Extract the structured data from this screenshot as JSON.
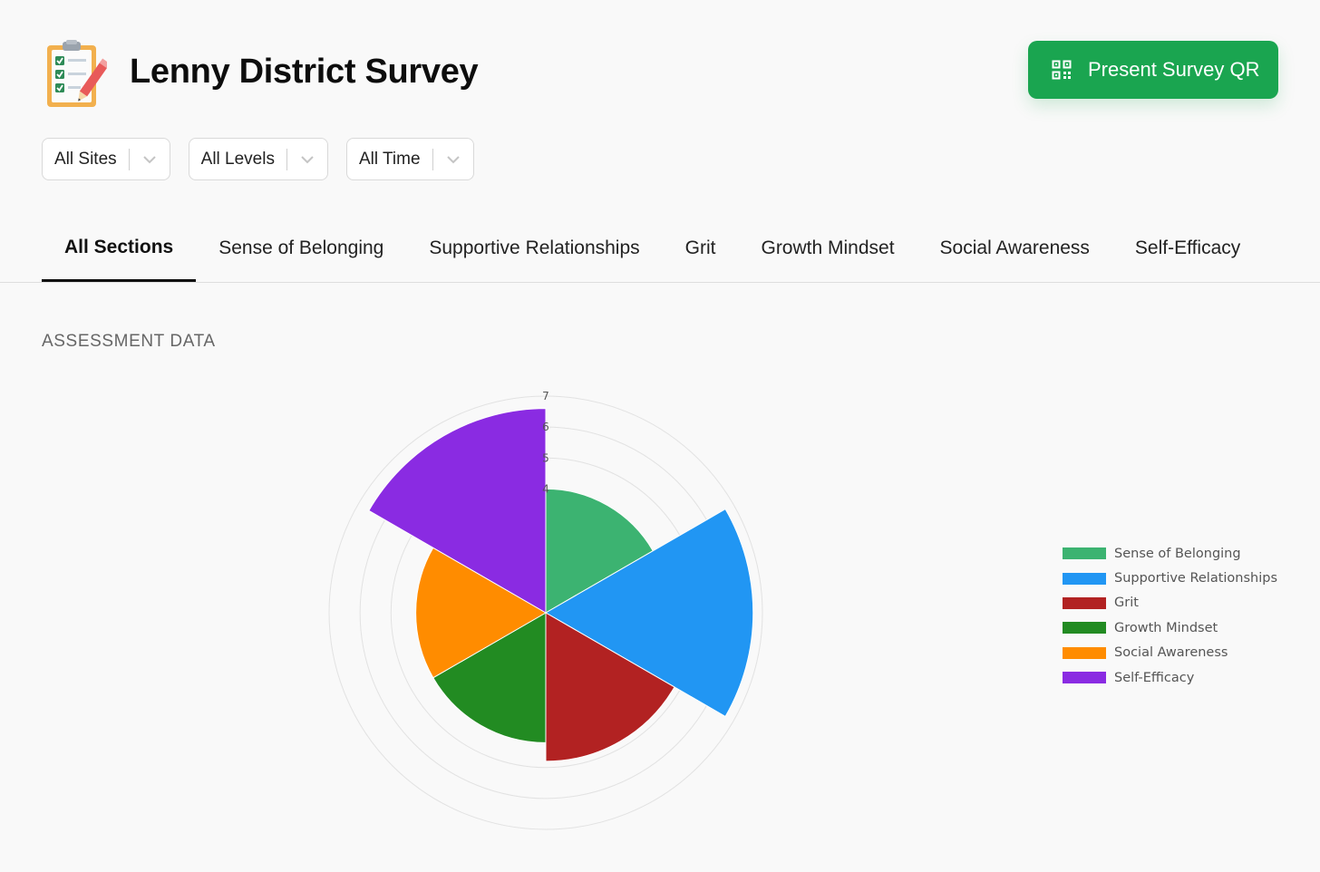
{
  "header": {
    "title": "Lenny District Survey",
    "qr_button_label": "Present Survey QR"
  },
  "filters": [
    {
      "label": "All Sites"
    },
    {
      "label": "All Levels"
    },
    {
      "label": "All Time"
    }
  ],
  "tabs": [
    {
      "label": "All Sections",
      "active": true
    },
    {
      "label": "Sense of Belonging",
      "active": false
    },
    {
      "label": "Supportive Relationships",
      "active": false
    },
    {
      "label": "Grit",
      "active": false
    },
    {
      "label": "Growth Mindset",
      "active": false
    },
    {
      "label": "Social Awareness",
      "active": false
    },
    {
      "label": "Self-Efficacy",
      "active": false
    }
  ],
  "section": {
    "title": "ASSESSMENT DATA"
  },
  "colors": {
    "accent_button": "#1aa550"
  },
  "chart_data": {
    "type": "polarArea",
    "title": "",
    "categories": [
      "Sense of Belonging",
      "Supportive Relationships",
      "Grit",
      "Growth Mindset",
      "Social Awareness",
      "Self-Efficacy"
    ],
    "values": [
      4.0,
      6.7,
      4.8,
      4.2,
      4.2,
      6.6
    ],
    "colors": [
      "#3cb371",
      "#2196f3",
      "#b22222",
      "#228b22",
      "#ff8c00",
      "#8a2be2"
    ],
    "r_min": 0,
    "r_max": 7,
    "visible_tick_labels": [
      "7",
      "6",
      "5",
      "4"
    ],
    "legend_position": "right"
  }
}
